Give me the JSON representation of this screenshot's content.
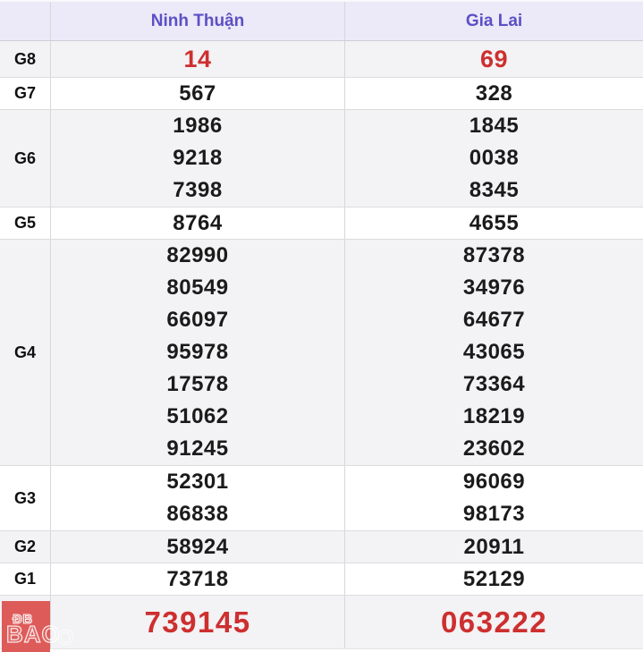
{
  "header": {
    "provinces": [
      "Ninh Thuận",
      "Gia Lai"
    ]
  },
  "rows": [
    {
      "label": "G8",
      "shaded": true,
      "red": true,
      "special": false,
      "ninh_thuan": [
        "14"
      ],
      "gia_lai": [
        "69"
      ]
    },
    {
      "label": "G7",
      "shaded": false,
      "red": false,
      "special": false,
      "ninh_thuan": [
        "567"
      ],
      "gia_lai": [
        "328"
      ]
    },
    {
      "label": "G6",
      "shaded": true,
      "red": false,
      "special": false,
      "ninh_thuan": [
        "1986",
        "9218",
        "7398"
      ],
      "gia_lai": [
        "1845",
        "0038",
        "8345"
      ]
    },
    {
      "label": "G5",
      "shaded": false,
      "red": false,
      "special": false,
      "ninh_thuan": [
        "8764"
      ],
      "gia_lai": [
        "4655"
      ]
    },
    {
      "label": "G4",
      "shaded": true,
      "red": false,
      "special": false,
      "ninh_thuan": [
        "82990",
        "80549",
        "66097",
        "95978",
        "17578",
        "51062",
        "91245"
      ],
      "gia_lai": [
        "87378",
        "34976",
        "64677",
        "43065",
        "73364",
        "18219",
        "23602"
      ]
    },
    {
      "label": "G3",
      "shaded": false,
      "red": false,
      "special": false,
      "ninh_thuan": [
        "52301",
        "86838"
      ],
      "gia_lai": [
        "96069",
        "98173"
      ]
    },
    {
      "label": "G2",
      "shaded": true,
      "red": false,
      "special": false,
      "ninh_thuan": [
        "58924"
      ],
      "gia_lai": [
        "20911"
      ]
    },
    {
      "label": "G1",
      "shaded": false,
      "red": false,
      "special": false,
      "ninh_thuan": [
        "73718"
      ],
      "gia_lai": [
        "52129"
      ]
    },
    {
      "label": "",
      "shaded": true,
      "red": true,
      "special": true,
      "ninh_thuan": [
        "739145"
      ],
      "gia_lai": [
        "063222"
      ]
    }
  ],
  "watermark": {
    "line1": "ĐB",
    "line2": "BAO",
    "ghost": "O"
  },
  "colors": {
    "accent": "#5b50c6",
    "red": "#cd2f2f",
    "special_red": "#d6362a",
    "watermark_red": "#dd5b59",
    "shaded_row": "#f3f2f4",
    "header_bg": "#ece9f8"
  }
}
